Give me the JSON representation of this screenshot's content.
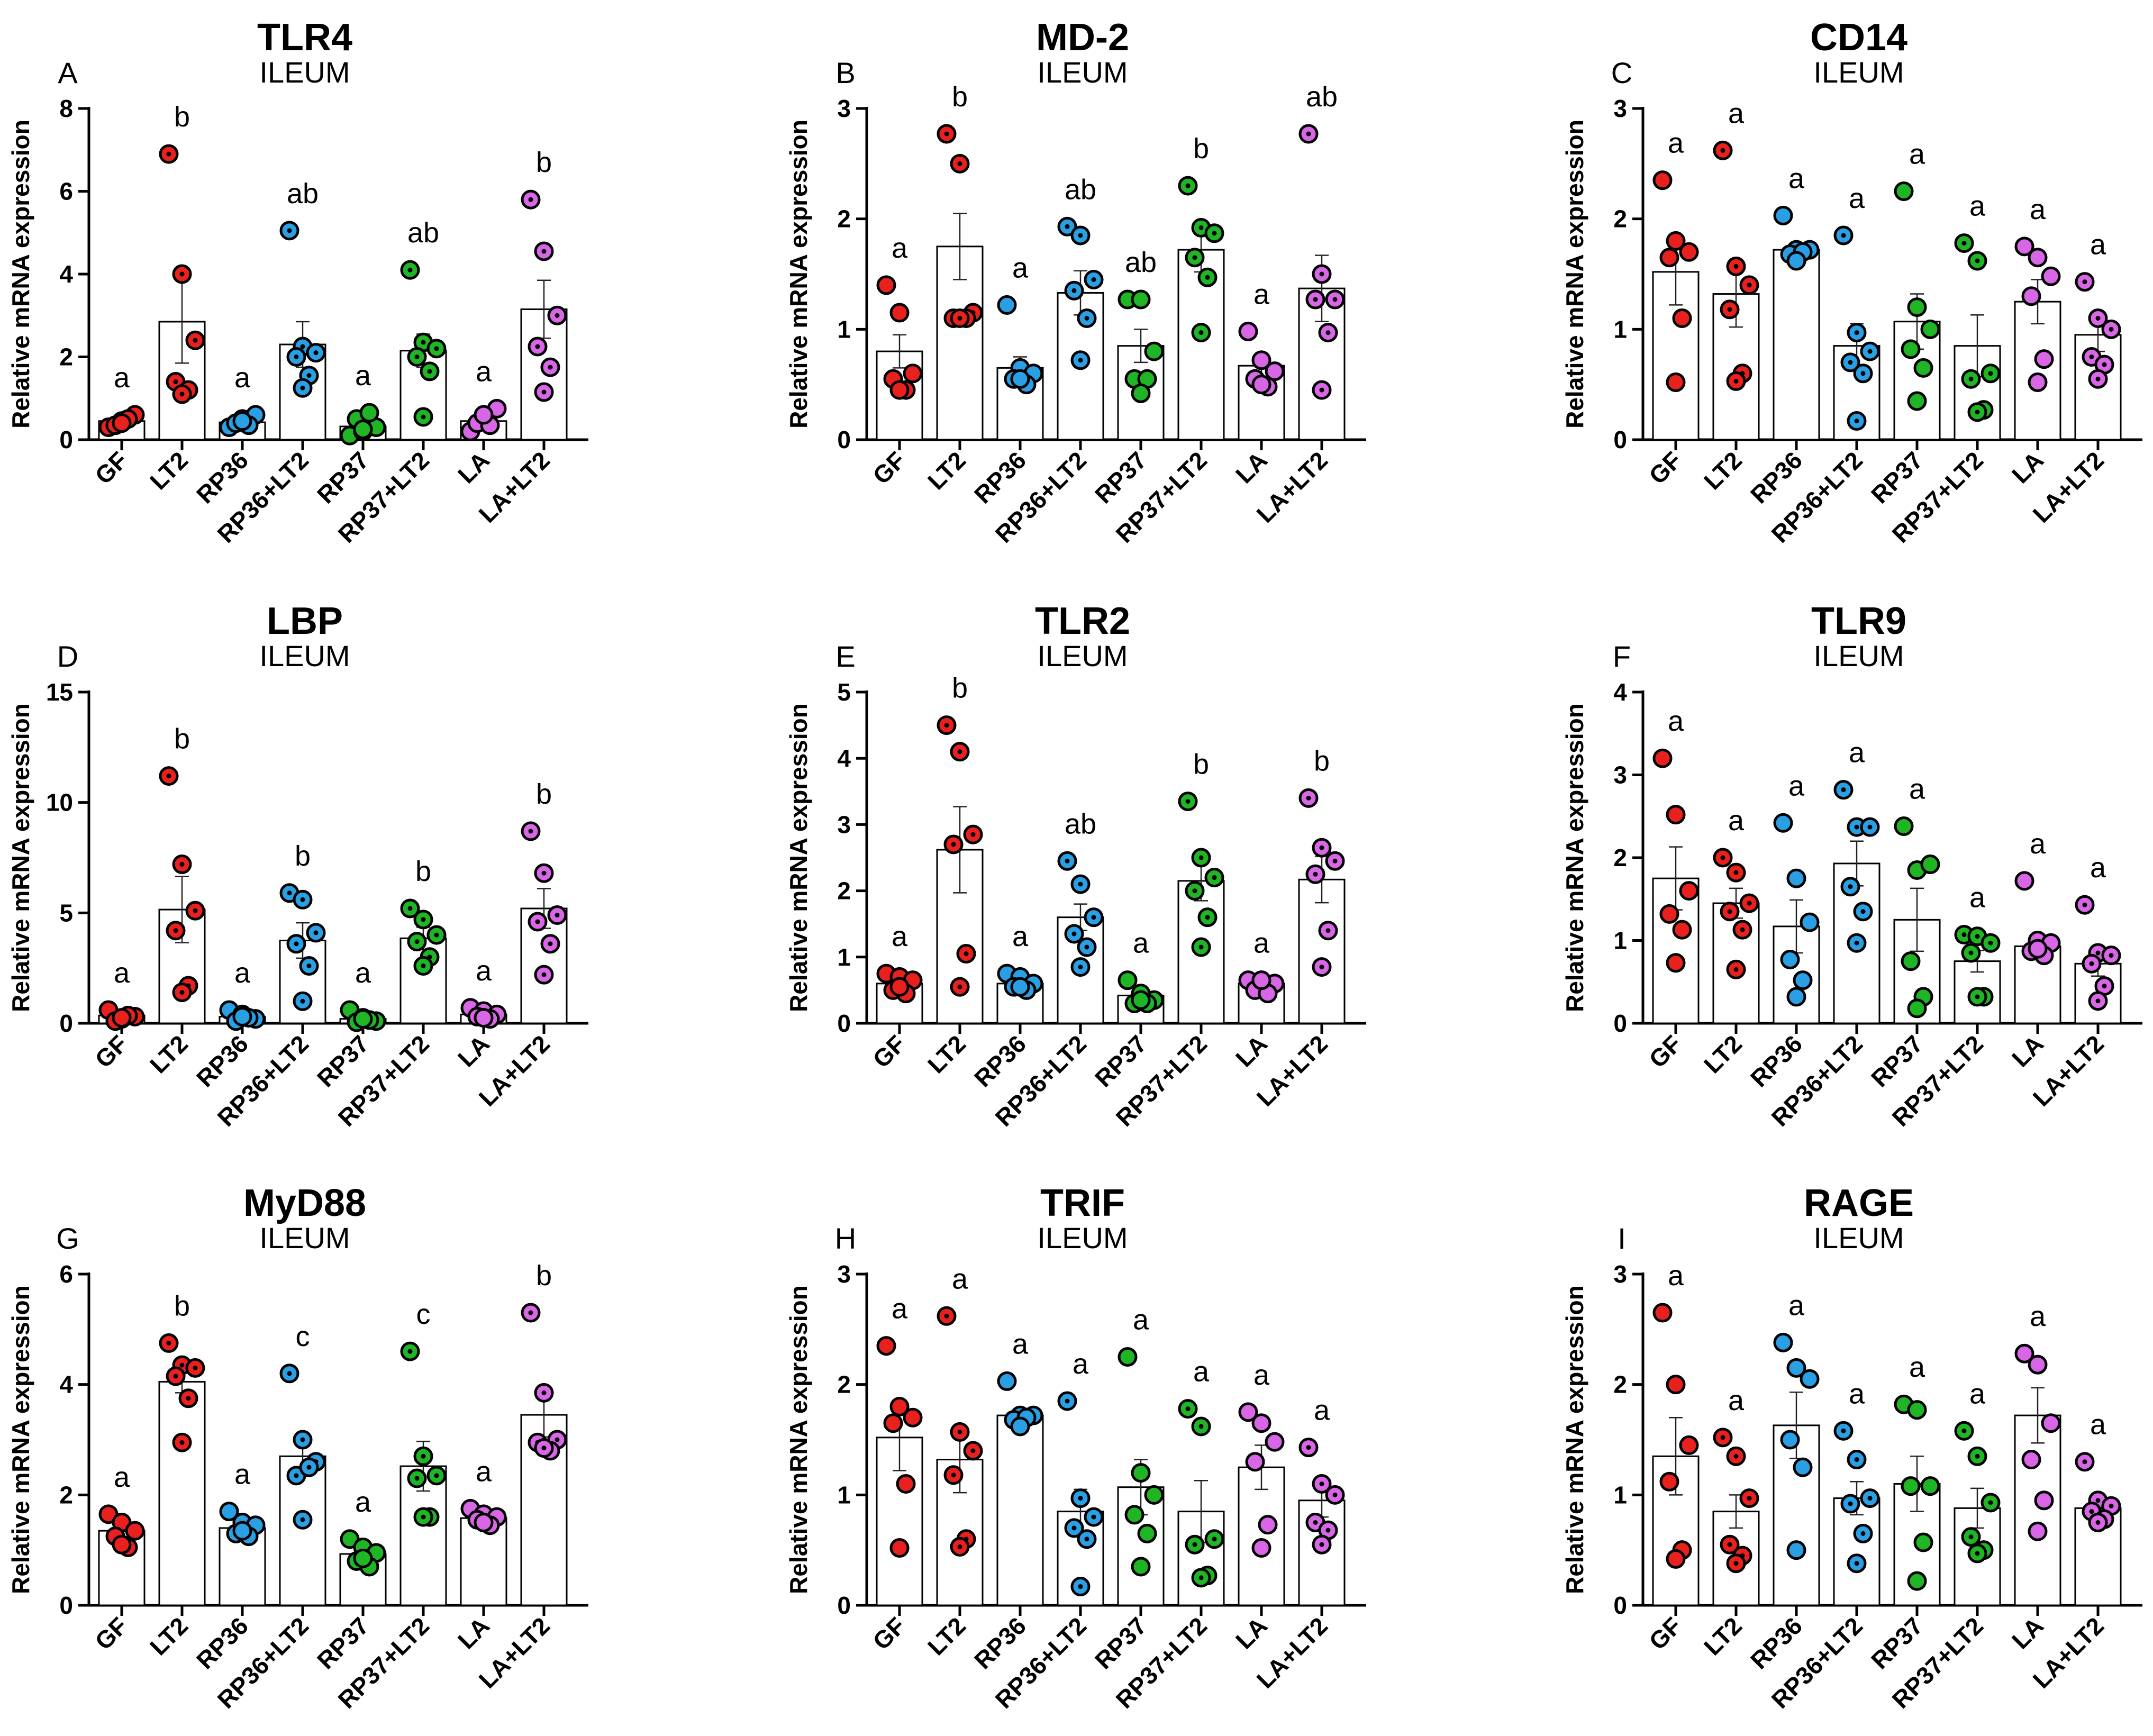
{
  "figure": {
    "ylabel": "Relative mRNA expression",
    "categories": [
      "GF",
      "LT2",
      "RP36",
      "RP36+LT2",
      "RP37",
      "RP37+LT2",
      "LA",
      "LA+LT2"
    ],
    "colors": [
      "#e8211f",
      "#e8211f",
      "#2a9fe4",
      "#2a9fe4",
      "#1fb524",
      "#1fb524",
      "#d866e6",
      "#d866e6"
    ],
    "dotted_groups": [
      false,
      true,
      false,
      true,
      false,
      true,
      false,
      true
    ]
  },
  "chart_data": [
    {
      "type": "bar",
      "letter": "A",
      "title": "TLR4",
      "subtitle": "ILEUM",
      "categories": [
        "GF",
        "LT2",
        "RP36",
        "RP36+LT2",
        "RP37",
        "RP37+LT2",
        "LA",
        "LA+LT2"
      ],
      "ylim": [
        0,
        8
      ],
      "yticks": [
        0,
        2,
        4,
        6,
        8
      ],
      "means": [
        0.45,
        2.85,
        0.42,
        2.3,
        0.32,
        2.15,
        0.45,
        3.15
      ],
      "sem": [
        0.1,
        1.0,
        0.1,
        0.55,
        0.1,
        0.4,
        0.12,
        0.7
      ],
      "letters": [
        "a",
        "b",
        "a",
        "ab",
        "a",
        "ab",
        "a",
        "b"
      ],
      "points": [
        [
          0.3,
          0.45,
          0.6,
          0.35,
          0.5,
          0.4
        ],
        [
          6.9,
          4.0,
          2.4,
          1.4,
          1.2,
          1.1
        ],
        [
          0.3,
          0.5,
          0.6,
          0.4,
          0.35,
          0.45
        ],
        [
          5.05,
          2.25,
          2.1,
          2.0,
          1.55,
          1.25
        ],
        [
          0.1,
          0.2,
          0.3,
          0.5,
          0.65,
          0.25
        ],
        [
          4.1,
          2.35,
          2.2,
          2.0,
          1.65,
          0.55
        ],
        [
          0.2,
          0.5,
          0.75,
          0.4,
          0.35,
          0.6
        ],
        [
          5.8,
          4.55,
          3.0,
          2.25,
          1.75,
          1.15
        ]
      ]
    },
    {
      "type": "bar",
      "letter": "B",
      "title": "MD-2",
      "subtitle": "ILEUM",
      "categories": [
        "GF",
        "LT2",
        "RP36",
        "RP36+LT2",
        "RP37",
        "RP37+LT2",
        "LA",
        "LA+LT2"
      ],
      "ylim": [
        0,
        3
      ],
      "yticks": [
        0,
        1,
        2,
        3
      ],
      "means": [
        0.8,
        1.75,
        0.65,
        1.33,
        0.85,
        1.72,
        0.67,
        1.37
      ],
      "sem": [
        0.15,
        0.3,
        0.1,
        0.2,
        0.15,
        0.2,
        0.1,
        0.3
      ],
      "letters": [
        "a",
        "b",
        "a",
        "ab",
        "ab",
        "b",
        "a",
        "ab"
      ],
      "points": [
        [
          1.4,
          1.15,
          0.6,
          0.55,
          0.45,
          0.45
        ],
        [
          2.77,
          2.5,
          1.15,
          1.1,
          1.1,
          1.1
        ],
        [
          1.22,
          0.65,
          0.6,
          0.55,
          0.5,
          0.55
        ],
        [
          1.93,
          1.85,
          1.45,
          1.35,
          1.1,
          0.72
        ],
        [
          1.27,
          1.27,
          0.8,
          0.55,
          0.55,
          0.42
        ],
        [
          2.3,
          1.92,
          1.87,
          1.65,
          1.47,
          0.97
        ],
        [
          0.98,
          0.72,
          0.62,
          0.55,
          0.48,
          0.5
        ],
        [
          2.77,
          1.5,
          1.27,
          1.27,
          0.97,
          0.45
        ]
      ]
    },
    {
      "type": "bar",
      "letter": "C",
      "title": "CD14",
      "subtitle": "ILEUM",
      "categories": [
        "GF",
        "LT2",
        "RP36",
        "RP36+LT2",
        "RP37",
        "RP37+LT2",
        "LA",
        "LA+LT2"
      ],
      "ylim": [
        0,
        3
      ],
      "yticks": [
        0,
        1,
        2,
        3
      ],
      "means": [
        1.52,
        1.32,
        1.72,
        0.85,
        1.07,
        0.85,
        1.25,
        0.95
      ],
      "sem": [
        0.3,
        0.3,
        0.06,
        0.2,
        0.25,
        0.28,
        0.2,
        0.15
      ],
      "letters": [
        "a",
        "a",
        "a",
        "a",
        "a",
        "a",
        "a",
        "a"
      ],
      "points": [
        [
          2.35,
          1.8,
          1.7,
          1.65,
          1.1,
          0.52
        ],
        [
          2.62,
          1.57,
          1.4,
          1.18,
          0.6,
          0.53
        ],
        [
          2.03,
          1.72,
          1.72,
          1.68,
          1.7,
          1.62
        ],
        [
          1.85,
          0.97,
          0.8,
          0.7,
          0.6,
          0.17
        ],
        [
          2.25,
          1.2,
          1.0,
          0.82,
          0.65,
          0.35
        ],
        [
          1.78,
          1.62,
          0.6,
          0.55,
          0.27,
          0.25
        ],
        [
          1.75,
          1.65,
          1.48,
          1.3,
          0.73,
          0.52
        ],
        [
          1.43,
          1.1,
          1.0,
          0.75,
          0.68,
          0.55
        ]
      ]
    },
    {
      "type": "bar",
      "letter": "D",
      "title": "LBP",
      "subtitle": "ILEUM",
      "categories": [
        "GF",
        "LT2",
        "RP36",
        "RP36+LT2",
        "RP37",
        "RP37+LT2",
        "LA",
        "LA+LT2"
      ],
      "ylim": [
        0,
        15
      ],
      "yticks": [
        0,
        5,
        10,
        15
      ],
      "means": [
        0.35,
        5.15,
        0.3,
        3.75,
        0.2,
        3.85,
        0.4,
        5.2
      ],
      "sem": [
        0.1,
        1.5,
        0.08,
        0.8,
        0.1,
        0.5,
        0.15,
        0.9
      ],
      "letters": [
        "a",
        "b",
        "a",
        "b",
        "a",
        "b",
        "a",
        "b"
      ],
      "points": [
        [
          0.6,
          0.2,
          0.3,
          0.1,
          0.35,
          0.25
        ],
        [
          11.2,
          7.2,
          5.1,
          4.2,
          1.7,
          1.4
        ],
        [
          0.6,
          0.4,
          0.2,
          0.1,
          0.25,
          0.3
        ],
        [
          5.9,
          5.6,
          4.1,
          3.6,
          2.6,
          1.0
        ],
        [
          0.6,
          0.25,
          0.1,
          0.05,
          0.15,
          0.2
        ],
        [
          5.2,
          4.7,
          4.0,
          3.7,
          3.0,
          2.6
        ],
        [
          0.7,
          0.55,
          0.4,
          0.3,
          0.2,
          0.25
        ],
        [
          8.7,
          6.8,
          4.9,
          4.6,
          3.6,
          2.2
        ]
      ]
    },
    {
      "type": "bar",
      "letter": "E",
      "title": "TLR2",
      "subtitle": "ILEUM",
      "categories": [
        "GF",
        "LT2",
        "RP36",
        "RP36+LT2",
        "RP37",
        "RP37+LT2",
        "LA",
        "LA+LT2"
      ],
      "ylim": [
        0,
        5
      ],
      "yticks": [
        0,
        1,
        2,
        3,
        4,
        5
      ],
      "means": [
        0.6,
        2.62,
        0.6,
        1.6,
        0.42,
        2.15,
        0.6,
        2.17
      ],
      "sem": [
        0.1,
        0.65,
        0.05,
        0.2,
        0.08,
        0.3,
        0.05,
        0.35
      ],
      "letters": [
        "a",
        "b",
        "a",
        "ab",
        "a",
        "b",
        "a",
        "b"
      ],
      "points": [
        [
          0.75,
          0.7,
          0.65,
          0.5,
          0.45,
          0.55
        ],
        [
          4.5,
          4.1,
          2.85,
          2.7,
          1.05,
          0.55
        ],
        [
          0.75,
          0.7,
          0.6,
          0.55,
          0.5,
          0.55
        ],
        [
          2.45,
          2.1,
          1.6,
          1.35,
          1.15,
          0.85
        ],
        [
          0.65,
          0.45,
          0.35,
          0.3,
          0.3,
          0.35
        ],
        [
          3.35,
          2.5,
          2.2,
          2.0,
          1.6,
          1.15
        ],
        [
          0.65,
          0.65,
          0.6,
          0.5,
          0.45,
          0.65
        ],
        [
          3.4,
          2.65,
          2.45,
          2.25,
          1.4,
          0.85
        ]
      ]
    },
    {
      "type": "bar",
      "letter": "F",
      "title": "TLR9",
      "subtitle": "ILEUM",
      "categories": [
        "GF",
        "LT2",
        "RP36",
        "RP36+LT2",
        "RP37",
        "RP37+LT2",
        "LA",
        "LA+LT2"
      ],
      "ylim": [
        0,
        4
      ],
      "yticks": [
        0,
        1,
        2,
        3,
        4
      ],
      "means": [
        1.75,
        1.45,
        1.17,
        1.93,
        1.25,
        0.75,
        0.93,
        0.72
      ],
      "sem": [
        0.38,
        0.18,
        0.32,
        0.27,
        0.38,
        0.13,
        0.15,
        0.15
      ],
      "letters": [
        "a",
        "a",
        "a",
        "a",
        "a",
        "a",
        "a",
        "a"
      ],
      "points": [
        [
          3.2,
          2.52,
          1.6,
          1.32,
          1.13,
          0.73
        ],
        [
          2.0,
          1.82,
          1.45,
          1.35,
          1.13,
          0.65
        ],
        [
          2.42,
          1.75,
          1.22,
          0.77,
          0.52,
          0.32
        ],
        [
          2.82,
          2.37,
          2.37,
          1.65,
          1.35,
          0.97
        ],
        [
          2.38,
          1.85,
          1.92,
          0.75,
          0.32,
          0.18
        ],
        [
          1.07,
          1.05,
          0.97,
          0.85,
          0.32,
          0.32
        ],
        [
          1.72,
          1.0,
          0.97,
          0.87,
          0.82,
          0.9
        ],
        [
          1.43,
          0.85,
          0.82,
          0.72,
          0.45,
          0.27
        ]
      ]
    },
    {
      "type": "bar",
      "letter": "G",
      "title": "MyD88",
      "subtitle": "ILEUM",
      "categories": [
        "GF",
        "LT2",
        "RP36",
        "RP36+LT2",
        "RP37",
        "RP37+LT2",
        "LA",
        "LA+LT2"
      ],
      "ylim": [
        0,
        6
      ],
      "yticks": [
        0,
        2,
        4,
        6
      ],
      "means": [
        1.35,
        4.05,
        1.4,
        2.7,
        0.93,
        2.52,
        1.58,
        3.45
      ],
      "sem": [
        0.12,
        0.2,
        0.1,
        0.35,
        0.1,
        0.45,
        0.08,
        0.4
      ],
      "letters": [
        "a",
        "b",
        "a",
        "c",
        "a",
        "c",
        "a",
        "b"
      ],
      "points": [
        [
          1.65,
          1.5,
          1.35,
          1.25,
          1.05,
          1.1
        ],
        [
          4.75,
          4.35,
          4.3,
          4.15,
          3.75,
          2.95
        ],
        [
          1.7,
          1.5,
          1.45,
          1.3,
          1.25,
          1.35
        ],
        [
          4.2,
          3.0,
          2.6,
          2.35,
          2.5,
          1.55
        ],
        [
          1.2,
          1.05,
          0.95,
          0.8,
          0.7,
          0.85
        ],
        [
          4.6,
          2.7,
          2.35,
          2.3,
          1.6,
          1.6
        ],
        [
          1.75,
          1.65,
          1.6,
          1.55,
          1.45,
          1.5
        ],
        [
          5.3,
          3.85,
          3.0,
          2.95,
          2.8,
          2.85
        ]
      ]
    },
    {
      "type": "bar",
      "letter": "H",
      "title": "TRIF",
      "subtitle": "ILEUM",
      "categories": [
        "GF",
        "LT2",
        "RP36",
        "RP36+LT2",
        "RP37",
        "RP37+LT2",
        "LA",
        "LA+LT2"
      ],
      "ylim": [
        0,
        3
      ],
      "yticks": [
        0,
        1,
        2,
        3
      ],
      "means": [
        1.52,
        1.32,
        1.72,
        0.85,
        1.07,
        0.85,
        1.25,
        0.95
      ],
      "sem": [
        0.3,
        0.3,
        0.06,
        0.2,
        0.25,
        0.28,
        0.2,
        0.15
      ],
      "letters": [
        "a",
        "a",
        "a",
        "a",
        "a",
        "a",
        "a",
        "a"
      ],
      "points": [
        [
          2.35,
          1.8,
          1.7,
          1.65,
          1.1,
          0.52
        ],
        [
          2.62,
          1.57,
          1.4,
          1.18,
          0.6,
          0.53
        ],
        [
          2.03,
          1.72,
          1.72,
          1.68,
          1.7,
          1.62
        ],
        [
          1.85,
          0.97,
          0.8,
          0.7,
          0.6,
          0.17
        ],
        [
          2.25,
          1.2,
          1.0,
          0.82,
          0.65,
          0.35
        ],
        [
          1.78,
          1.62,
          0.6,
          0.55,
          0.27,
          0.25
        ],
        [
          1.75,
          1.65,
          1.48,
          1.3,
          0.73,
          0.52
        ],
        [
          1.43,
          1.1,
          1.0,
          0.75,
          0.68,
          0.55
        ]
      ]
    },
    {
      "type": "bar",
      "letter": "I",
      "title": "RAGE",
      "subtitle": "ILEUM",
      "categories": [
        "GF",
        "LT2",
        "RP36",
        "RP36+LT2",
        "RP37",
        "RP37+LT2",
        "LA",
        "LA+LT2"
      ],
      "ylim": [
        0,
        3
      ],
      "yticks": [
        0,
        1,
        2,
        3
      ],
      "means": [
        1.35,
        0.85,
        1.63,
        0.97,
        1.1,
        0.88,
        1.72,
        0.88
      ],
      "sem": [
        0.35,
        0.15,
        0.3,
        0.15,
        0.25,
        0.18,
        0.25,
        0.1
      ],
      "letters": [
        "a",
        "a",
        "a",
        "a",
        "a",
        "a",
        "a",
        "a"
      ],
      "points": [
        [
          2.65,
          2.0,
          1.45,
          1.12,
          0.5,
          0.42
        ],
        [
          1.52,
          1.35,
          0.97,
          0.55,
          0.45,
          0.38
        ],
        [
          2.38,
          2.15,
          2.05,
          1.5,
          1.25,
          0.5
        ],
        [
          1.58,
          1.32,
          0.97,
          0.92,
          0.65,
          0.38
        ],
        [
          1.82,
          1.77,
          1.08,
          1.08,
          0.57,
          0.22
        ],
        [
          1.58,
          1.35,
          0.93,
          0.62,
          0.5,
          0.47
        ],
        [
          2.28,
          2.18,
          1.65,
          1.32,
          0.95,
          0.67
        ],
        [
          1.3,
          0.95,
          0.9,
          0.85,
          0.78,
          0.75
        ]
      ]
    }
  ]
}
